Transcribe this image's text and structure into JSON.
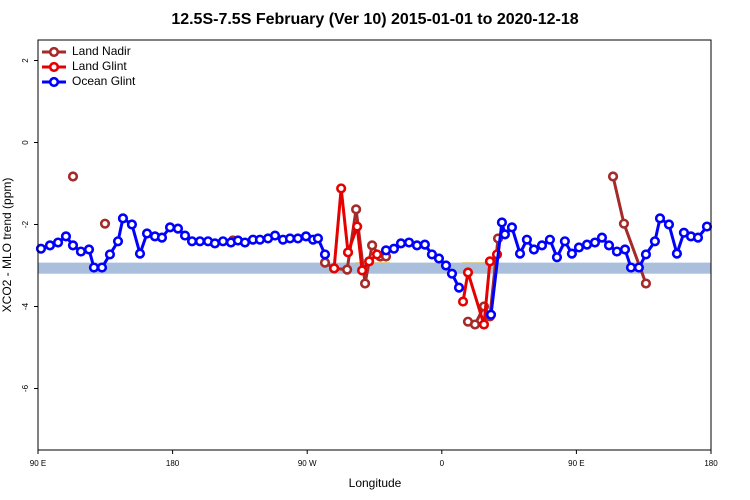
{
  "chart_data": {
    "type": "line",
    "title": "12.5S-7.5S February (Ver 10)   2015-01-01 to 2020-12-18",
    "x_label": "Longitude",
    "y_label": "XCO2 - MLO trend (ppm)",
    "xlim": [
      90,
      540
    ],
    "ylim": [
      -7.5,
      2.5
    ],
    "xticks": [
      {
        "value": 90,
        "label": "90 E"
      },
      {
        "value": 180,
        "label": "180"
      },
      {
        "value": 270,
        "label": "90 W"
      },
      {
        "value": 360,
        "label": "0"
      },
      {
        "value": 450,
        "label": "90 E"
      },
      {
        "value": 540,
        "label": "180"
      }
    ],
    "yticks": [
      2,
      0,
      -2,
      -4,
      -6
    ],
    "band": {
      "ylim": [
        -3.2,
        -2.93
      ],
      "color": "#a9bfdc"
    },
    "legend": "top-left",
    "series": [
      {
        "name": "Land Nadir",
        "color": "#a52a2a",
        "x": [
          113.4,
          120.1,
          134.8,
          140,
          220.3,
          250,
          281.9,
          288.0,
          296.7,
          302.7,
          308.7,
          313.4,
          318.8,
          322.7,
          340,
          377.5,
          382.2,
          388.2,
          392.2,
          397.6,
          420,
          474.5,
          481.8,
          496.5
        ],
        "values": [
          -0.83,
          null,
          -1.98,
          null,
          -2.39,
          null,
          -2.93,
          -3.07,
          -3.1,
          -1.63,
          -3.44,
          -2.51,
          -2.78,
          -2.78,
          null,
          -4.37,
          -4.44,
          -4.0,
          -4.24,
          -2.34,
          null,
          -0.83,
          -1.98,
          -3.44
        ]
      },
      {
        "name": "Land Glint",
        "color": "#e60000",
        "x": [
          288.0,
          292.7,
          297.3,
          303.4,
          306.7,
          311.4,
          316.7,
          340,
          374.2,
          377.5,
          388.2,
          392.2,
          396.9
        ],
        "values": [
          -3.07,
          -1.12,
          -2.68,
          -2.05,
          -3.12,
          -2.9,
          -2.73,
          null,
          -3.88,
          -3.17,
          -4.44,
          -2.9,
          -2.73
        ]
      },
      {
        "name": "Ocean Glint",
        "color": "#0000ff",
        "x": [
          92.0,
          98.0,
          103.4,
          108.7,
          113.4,
          118.7,
          124.1,
          127.4,
          132.8,
          138.1,
          143.5,
          146.8,
          152.8,
          158.2,
          162.9,
          168.2,
          172.9,
          178.3,
          183.6,
          188.3,
          193.0,
          198.3,
          203.7,
          208.3,
          213.7,
          219.0,
          223.7,
          228.4,
          233.7,
          238.4,
          243.8,
          248.5,
          253.8,
          258.5,
          263.8,
          269.2,
          273.9,
          277.2,
          281.9,
          302,
          322.7,
          328.0,
          332.7,
          338.1,
          343.4,
          348.7,
          353.4,
          358.1,
          362.8,
          366.8,
          371.5,
          380,
          392.9,
          400.2,
          402.2,
          406.9,
          412.3,
          416.9,
          421.6,
          427.0,
          432.3,
          437.0,
          442.3,
          447.0,
          451.7,
          457.1,
          462.4,
          467.1,
          471.8,
          477.1,
          482.5,
          486.5,
          491.8,
          496.5,
          502.5,
          505.9,
          511.9,
          517.2,
          521.9,
          526.6,
          531.3,
          537.3
        ],
        "values": [
          -2.59,
          -2.51,
          -2.44,
          -2.29,
          -2.51,
          -2.66,
          -2.61,
          -3.05,
          -3.05,
          -2.73,
          -2.41,
          -1.85,
          -2.0,
          -2.71,
          -2.22,
          -2.29,
          -2.32,
          -2.07,
          -2.1,
          -2.27,
          -2.41,
          -2.41,
          -2.41,
          -2.46,
          -2.41,
          -2.44,
          -2.39,
          -2.44,
          -2.37,
          -2.37,
          -2.34,
          -2.27,
          -2.37,
          -2.34,
          -2.34,
          -2.29,
          -2.37,
          -2.34,
          -2.73,
          null,
          -2.63,
          -2.59,
          -2.46,
          -2.44,
          -2.51,
          -2.49,
          -2.73,
          -2.83,
          -3.0,
          -3.2,
          -3.54,
          null,
          -4.2,
          -1.95,
          -2.24,
          -2.07,
          -2.71,
          -2.37,
          -2.61,
          -2.51,
          -2.37,
          -2.8,
          -2.41,
          -2.71,
          -2.56,
          -2.49,
          -2.44,
          -2.32,
          -2.51,
          -2.66,
          -2.61,
          -3.05,
          -3.05,
          -2.73,
          -2.41,
          -1.85,
          -2.0,
          -2.71,
          -2.2,
          -2.29,
          -2.32,
          -2.05
        ]
      }
    ]
  }
}
